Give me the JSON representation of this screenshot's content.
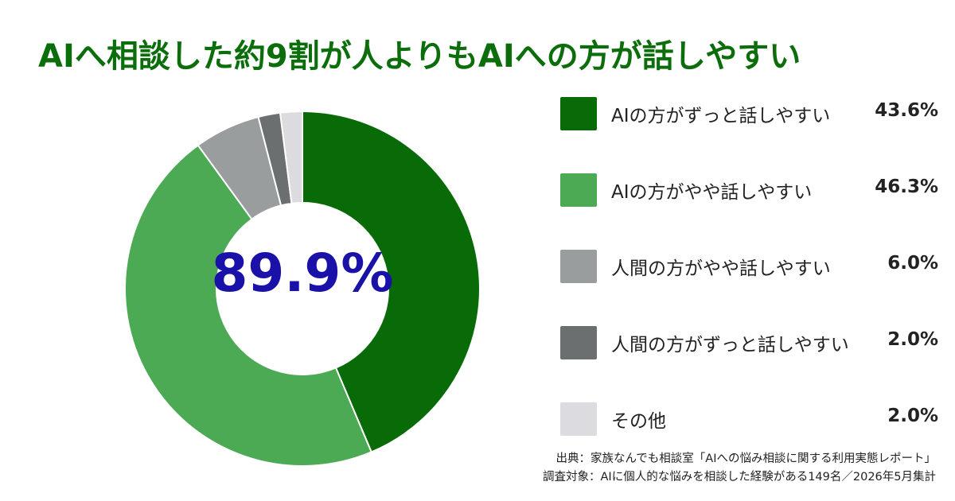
{
  "title": "AIへ相談した約9割が人よりもAIへの方が話しやすい",
  "center_label": "89.9%",
  "chart_data": {
    "type": "pie",
    "style": "donut",
    "title": "AIへ相談した約9割が人よりもAIへの方が話しやすい",
    "center_text": "89.9%",
    "legend_position": "right",
    "slices": [
      {
        "label": "AIの方がずっと話しやすい",
        "value": 43.6,
        "display": "43.6%",
        "color": "#086b08"
      },
      {
        "label": "AIの方がやや話しやすい",
        "value": 46.3,
        "display": "46.3%",
        "color": "#4caa54"
      },
      {
        "label": "人間の方がやや話しやすい",
        "value": 6.0,
        "display": "6.0%",
        "color": "#9a9d9e"
      },
      {
        "label": "人間の方がずっと話しやすい",
        "value": 2.0,
        "display": "2.0%",
        "color": "#6b6f70"
      },
      {
        "label": "その他",
        "value": 2.0,
        "display": "2.0%",
        "color": "#dcdce0"
      }
    ]
  },
  "source": {
    "line1": "出典：家族なんでも相談室「AIへの悩み相談に関する利用実態レポート」",
    "line2": "調査対象：AIに個人的な悩みを相談した経験がある149名／2026年5月集計"
  }
}
